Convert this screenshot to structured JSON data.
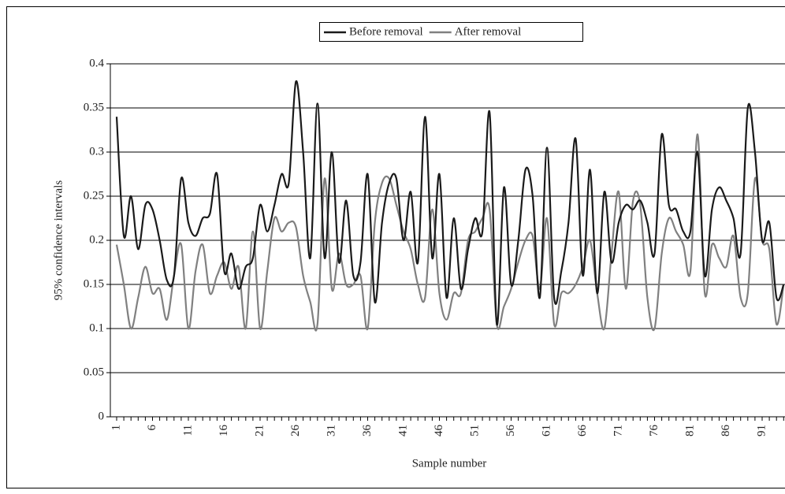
{
  "chart_data": {
    "type": "line",
    "x_label": "Sample number",
    "y_label": "95% confidence intervals",
    "categories": [
      "1",
      null,
      null,
      null,
      null,
      "6",
      null,
      null,
      null,
      null,
      "11",
      null,
      null,
      null,
      null,
      "16",
      null,
      null,
      null,
      null,
      "21",
      null,
      null,
      null,
      null,
      "26",
      null,
      null,
      null,
      null,
      "31",
      null,
      null,
      null,
      null,
      "36",
      null,
      null,
      null,
      null,
      "41",
      null,
      null,
      null,
      null,
      "46",
      null,
      null,
      null,
      null,
      "51",
      null,
      null,
      null,
      null,
      "56",
      null,
      null,
      null,
      null,
      "61",
      null,
      null,
      null,
      null,
      "66",
      null,
      null,
      null,
      null,
      "71",
      null,
      null,
      null,
      null,
      "76",
      null,
      null,
      null,
      null,
      "81",
      null,
      null,
      null,
      null,
      "86",
      null,
      null,
      null,
      null,
      "91",
      null,
      null,
      null
    ],
    "series": [
      {
        "name": "Before removal",
        "color": "#1a1a1a",
        "values": [
          0.34,
          0.205,
          0.25,
          0.19,
          0.24,
          0.235,
          0.2,
          0.155,
          0.16,
          0.27,
          0.22,
          0.205,
          0.225,
          0.23,
          0.275,
          0.165,
          0.185,
          0.145,
          0.17,
          0.18,
          0.24,
          0.21,
          0.24,
          0.275,
          0.265,
          0.38,
          0.3,
          0.18,
          0.355,
          0.18,
          0.3,
          0.175,
          0.245,
          0.16,
          0.175,
          0.275,
          0.13,
          0.22,
          0.265,
          0.27,
          0.2,
          0.255,
          0.175,
          0.34,
          0.18,
          0.275,
          0.135,
          0.225,
          0.145,
          0.19,
          0.225,
          0.21,
          0.345,
          0.105,
          0.26,
          0.15,
          0.2,
          0.28,
          0.25,
          0.135,
          0.305,
          0.135,
          0.165,
          0.22,
          0.315,
          0.16,
          0.28,
          0.14,
          0.255,
          0.175,
          0.22,
          0.24,
          0.235,
          0.245,
          0.22,
          0.185,
          0.32,
          0.24,
          0.235,
          0.21,
          0.21,
          0.3,
          0.16,
          0.235,
          0.26,
          0.245,
          0.225,
          0.185,
          0.35,
          0.3,
          0.2,
          0.22,
          0.135,
          0.15
        ]
      },
      {
        "name": "After removal",
        "color": "#808080",
        "values": [
          0.195,
          0.15,
          0.1,
          0.135,
          0.17,
          0.14,
          0.145,
          0.11,
          0.16,
          0.195,
          0.1,
          0.165,
          0.195,
          0.14,
          0.16,
          0.175,
          0.145,
          0.17,
          0.1,
          0.21,
          0.1,
          0.165,
          0.225,
          0.21,
          0.22,
          0.215,
          0.16,
          0.13,
          0.105,
          0.27,
          0.145,
          0.185,
          0.15,
          0.15,
          0.16,
          0.1,
          0.22,
          0.265,
          0.27,
          0.24,
          0.21,
          0.19,
          0.15,
          0.135,
          0.235,
          0.14,
          0.11,
          0.14,
          0.14,
          0.2,
          0.21,
          0.225,
          0.235,
          0.105,
          0.125,
          0.145,
          0.175,
          0.2,
          0.205,
          0.145,
          0.225,
          0.105,
          0.14,
          0.14,
          0.15,
          0.17,
          0.2,
          0.14,
          0.1,
          0.185,
          0.255,
          0.145,
          0.245,
          0.24,
          0.135,
          0.1,
          0.185,
          0.225,
          0.21,
          0.195,
          0.165,
          0.32,
          0.14,
          0.195,
          0.18,
          0.17,
          0.205,
          0.135,
          0.14,
          0.27,
          0.2,
          0.19,
          0.105,
          0.15
        ]
      }
    ],
    "ylim": [
      0,
      0.4
    ],
    "yticks": [
      0,
      0.05,
      0.1,
      0.15,
      0.2,
      0.25,
      0.3,
      0.35,
      0.4
    ],
    "grid": true,
    "legend": "top"
  }
}
